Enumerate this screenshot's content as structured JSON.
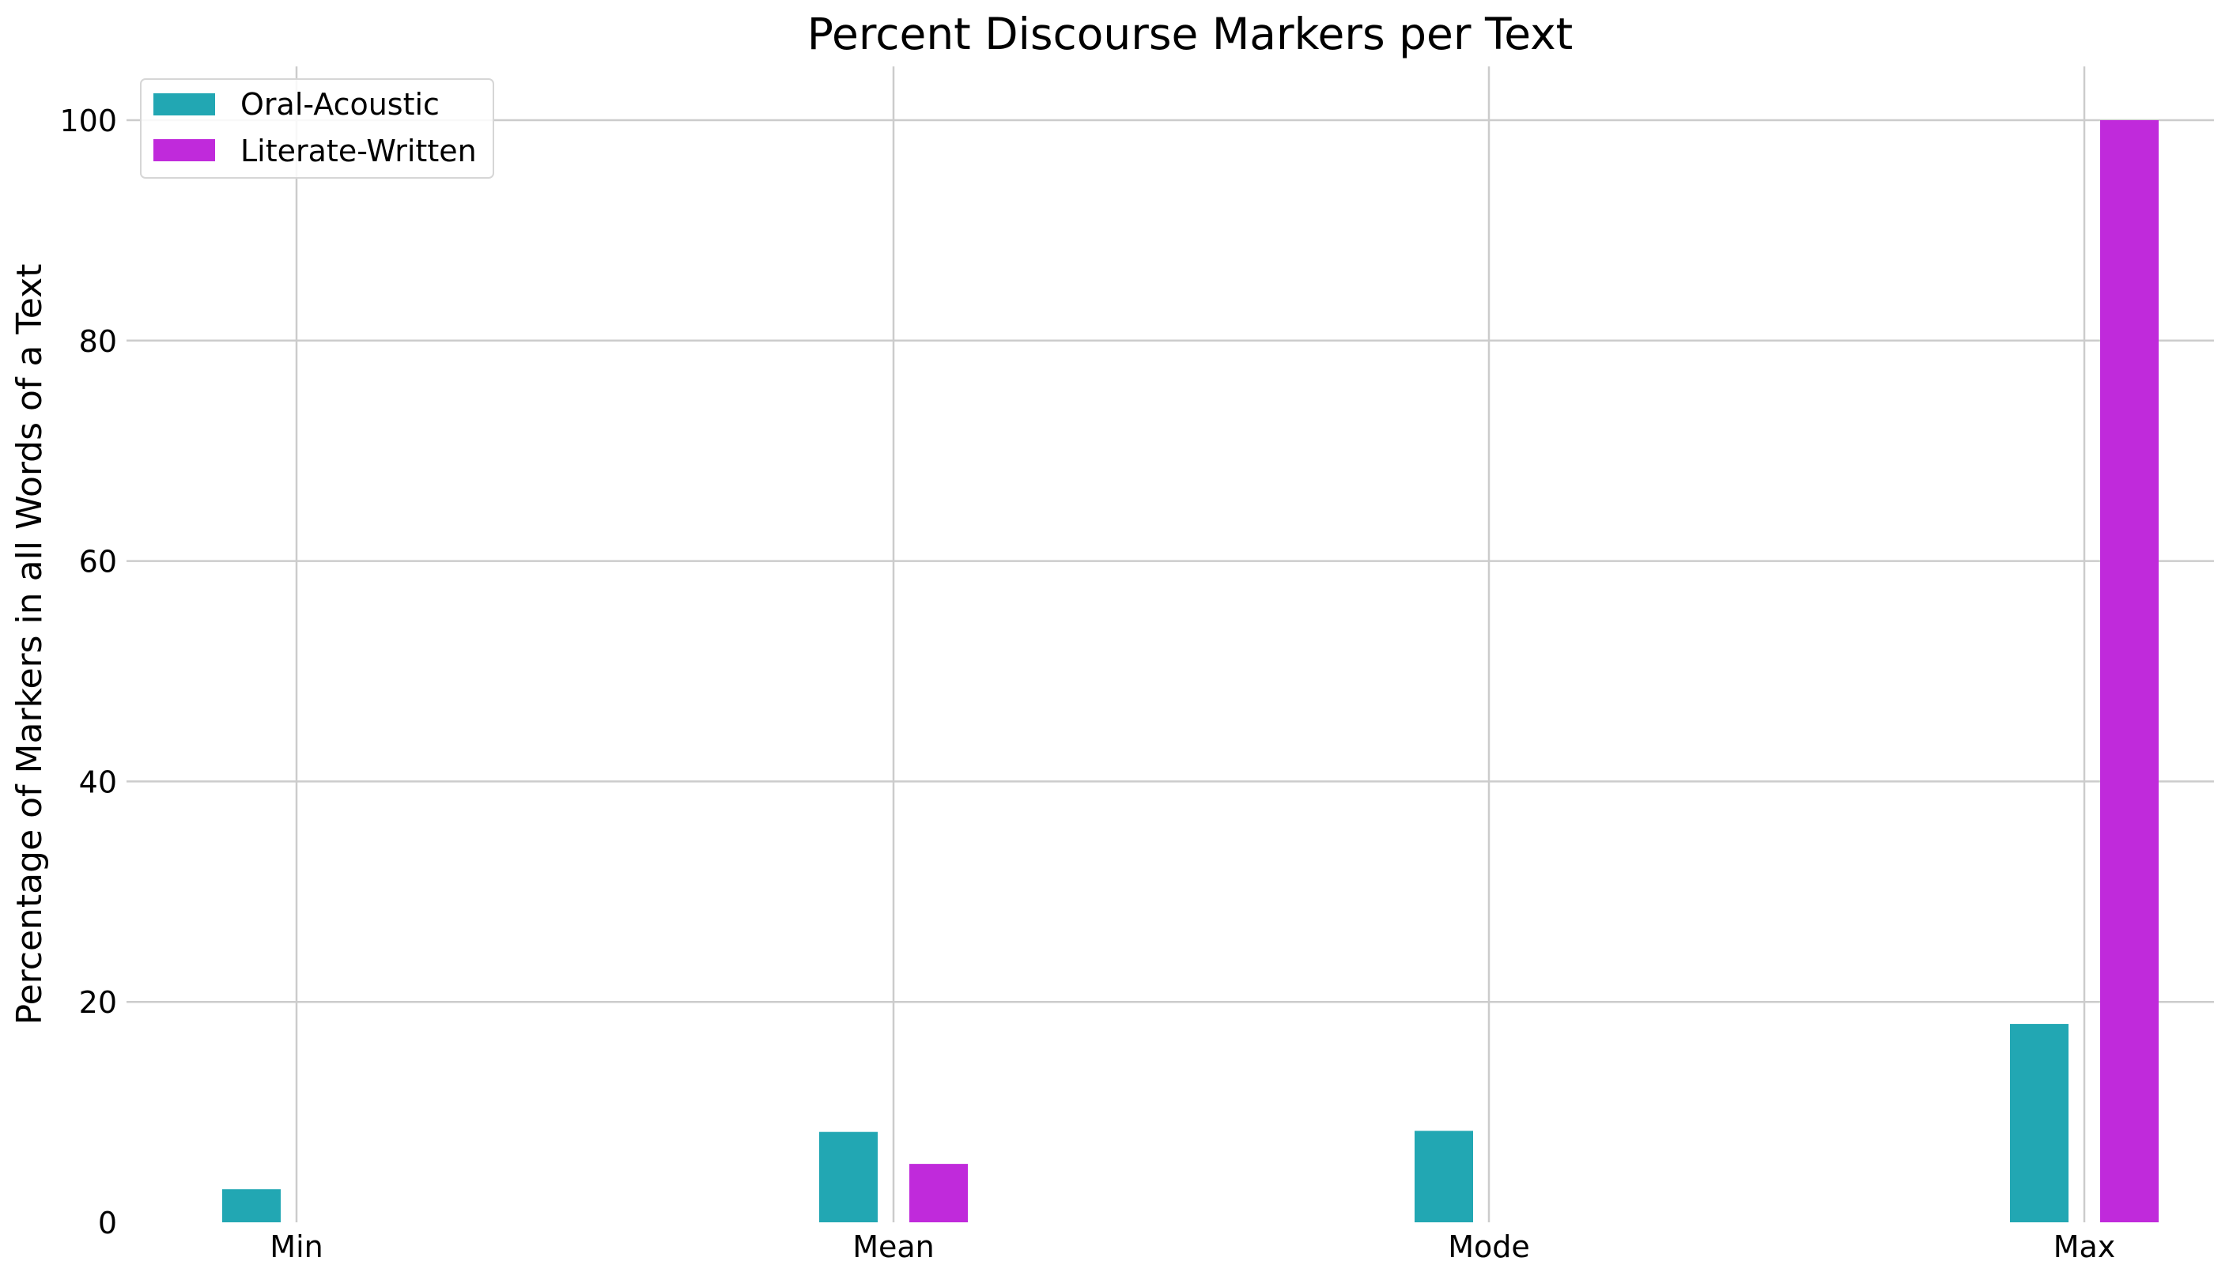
{
  "chart_data": {
    "type": "bar",
    "title": "Percent Discourse Markers per Text",
    "xlabel": "",
    "ylabel": "Percentage of Markers in all Words of a Text",
    "categories": [
      "Min",
      "Mean",
      "Mode",
      "Max"
    ],
    "series": [
      {
        "name": "Oral-Acoustic",
        "color": "#22a7b3",
        "values": [
          3,
          8.2,
          8.3,
          18
        ]
      },
      {
        "name": "Literate-Written",
        "color": "#c02adb",
        "values": [
          0,
          5.3,
          0,
          100
        ]
      }
    ],
    "ylim": [
      0,
      105
    ],
    "yticks": [
      0,
      20,
      40,
      60,
      80,
      100
    ],
    "grid": true,
    "legend_position": "top-left"
  }
}
